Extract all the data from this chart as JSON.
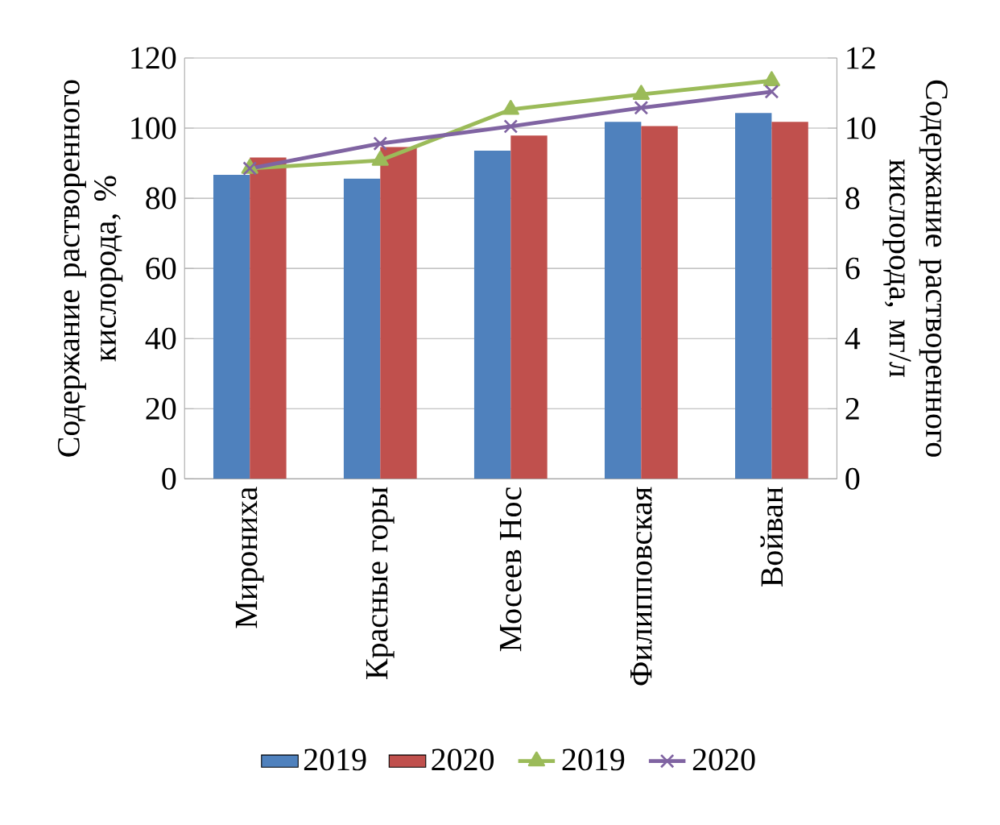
{
  "chart_data": {
    "type": "bar",
    "ylabel": "Содержание растворенного кислорода, %",
    "y2label": "Содержание растворенного кислорода, мг/л",
    "categories": [
      "Мирониха",
      "Красные горы",
      "Мосеев Нос",
      "Филипповская",
      "Войван"
    ],
    "ylim": [
      0,
      120
    ],
    "yticks": [
      0,
      20,
      40,
      60,
      80,
      100,
      120
    ],
    "y2lim": [
      0,
      12
    ],
    "y2ticks": [
      0,
      2,
      4,
      6,
      8,
      10,
      12
    ],
    "grid": "y",
    "legend": "bottom",
    "series": [
      {
        "name": "2019",
        "color": "#4f81bd",
        "values": [
          86.7,
          85.6,
          93.6,
          101.8,
          104.3
        ]
      },
      {
        "name": "2020",
        "color": "#c0504d",
        "values": [
          91.6,
          94.6,
          97.9,
          100.6,
          101.8
        ]
      },
      {
        "name": "2019",
        "type": "line",
        "axis": "y2",
        "marker": "triangle",
        "color": "#9bbb59",
        "values": [
          8.85,
          9.08,
          10.53,
          10.96,
          11.35
        ]
      },
      {
        "name": "2020",
        "type": "line",
        "axis": "y2",
        "marker": "cross",
        "color": "#8064a2",
        "values": [
          8.85,
          9.56,
          10.05,
          10.58,
          11.04
        ]
      }
    ]
  }
}
